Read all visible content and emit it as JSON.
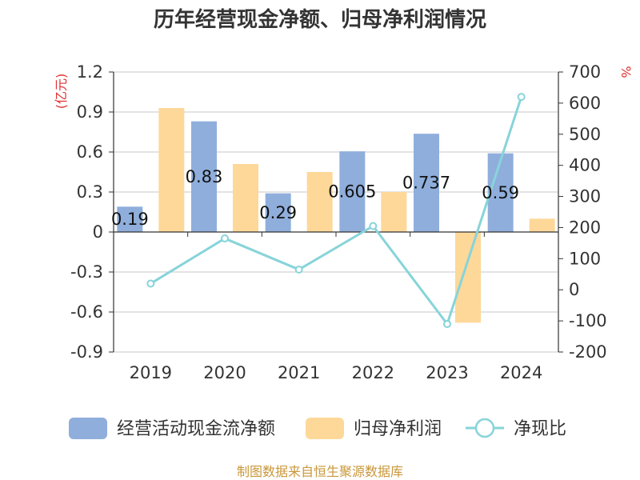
{
  "chart_data": {
    "type": "bar",
    "title": "历年经营现金净额、归母净利润情况",
    "categories": [
      "2019",
      "2020",
      "2021",
      "2022",
      "2023",
      "2024"
    ],
    "series": [
      {
        "name": "经营活动现金流净额",
        "kind": "bar",
        "axis": "left",
        "color": "#8faedb",
        "values": [
          0.19,
          0.83,
          0.29,
          0.605,
          0.737,
          0.59
        ],
        "data_labels": [
          "0.19",
          "0.83",
          "0.29",
          "0.605",
          "0.737",
          "0.59"
        ]
      },
      {
        "name": "归母净利润",
        "kind": "bar",
        "axis": "left",
        "color": "#fdd899",
        "values": [
          0.93,
          0.51,
          0.45,
          0.3,
          -0.68,
          0.1
        ]
      },
      {
        "name": "净现比",
        "kind": "line",
        "axis": "right",
        "color": "#87d4da",
        "values": [
          20,
          165,
          65,
          205,
          -110,
          620
        ]
      }
    ],
    "y_left": {
      "unit": "(亿元)",
      "range": [
        -0.9,
        1.2
      ],
      "ticks": [
        1.2,
        0.9,
        0.6,
        0.3,
        0,
        -0.3,
        -0.6,
        -0.9
      ],
      "tick_labels": [
        "1.2",
        "0.9",
        "0.6",
        "0.3",
        "0",
        "-0.3",
        "-0.6",
        "-0.9"
      ]
    },
    "y_right": {
      "unit": "%",
      "range": [
        -200,
        700
      ],
      "ticks": [
        700,
        600,
        500,
        400,
        300,
        200,
        100,
        0,
        -100,
        -200
      ],
      "tick_labels": [
        "700",
        "600",
        "500",
        "400",
        "300",
        "200",
        "100",
        "0",
        "-100",
        "-200"
      ]
    },
    "grid": true,
    "legend_position": "bottom"
  },
  "footer": {
    "source": "制图数据来自恒生聚源数据库",
    "color": "#c9973a"
  },
  "colors": {
    "unit": "#e03030",
    "grid": "#c8c8c8",
    "axis": "#333333"
  }
}
